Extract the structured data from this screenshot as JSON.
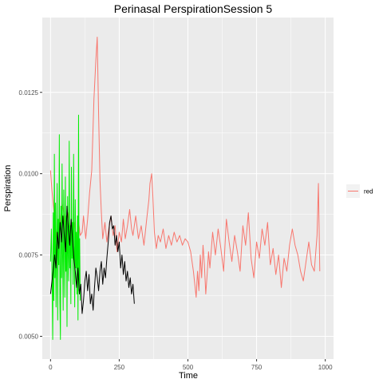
{
  "chart_data": {
    "type": "line",
    "title": "Perinasal PerspirationSession 5",
    "xlabel": "Time",
    "ylabel": "Perspiration",
    "xlim": [
      -30,
      1030
    ],
    "ylim": [
      0.0043,
      0.0148
    ],
    "x_ticks": [
      0,
      250,
      500,
      750,
      1000
    ],
    "x_tick_labels": [
      "0",
      "250",
      "500",
      "750",
      "1000"
    ],
    "y_ticks": [
      0.005,
      0.0075,
      0.01,
      0.0125
    ],
    "y_tick_labels": [
      "0.0050",
      "0.0075",
      "0.0100",
      "0.0125"
    ],
    "grid": true,
    "legend_position": "right",
    "legend_entries": [
      {
        "label": "red",
        "color": "#f8766d"
      }
    ],
    "series": [
      {
        "color": "#f8766d",
        "x": [
          0,
          5,
          12,
          20,
          28,
          35,
          42,
          50,
          58,
          65,
          72,
          80,
          88,
          95,
          100,
          108,
          115,
          120,
          128,
          135,
          142,
          150,
          158,
          165,
          170,
          175,
          180,
          185,
          190,
          198,
          205,
          212,
          220,
          228,
          235,
          242,
          250,
          258,
          265,
          272,
          280,
          288,
          295,
          300,
          310,
          320,
          330,
          340,
          350,
          358,
          362,
          368,
          372,
          378,
          385,
          392,
          400,
          410,
          420,
          430,
          440,
          450,
          460,
          470,
          480,
          490,
          500,
          510,
          515,
          520,
          525,
          530,
          535,
          540,
          545,
          550,
          555,
          560,
          565,
          570,
          575,
          580,
          590,
          600,
          610,
          620,
          630,
          640,
          650,
          660,
          670,
          680,
          690,
          700,
          710,
          720,
          730,
          740,
          750,
          760,
          770,
          780,
          790,
          800,
          810,
          820,
          830,
          840,
          850,
          860,
          870,
          880,
          890,
          900,
          910,
          920,
          930,
          940,
          950,
          960,
          970,
          975,
          980
        ],
        "y": [
          0.0101,
          0.0095,
          0.0089,
          0.0081,
          0.0076,
          0.0085,
          0.0091,
          0.0087,
          0.0078,
          0.0088,
          0.0083,
          0.0079,
          0.0085,
          0.0077,
          0.0087,
          0.0081,
          0.0082,
          0.0087,
          0.008,
          0.0086,
          0.0094,
          0.0101,
          0.0123,
          0.0135,
          0.0142,
          0.0118,
          0.0098,
          0.0088,
          0.008,
          0.0085,
          0.0079,
          0.0083,
          0.0087,
          0.0081,
          0.0084,
          0.0076,
          0.0082,
          0.0079,
          0.0086,
          0.008,
          0.0084,
          0.0089,
          0.0083,
          0.0081,
          0.0087,
          0.008,
          0.0084,
          0.0078,
          0.0086,
          0.0092,
          0.0097,
          0.01,
          0.0094,
          0.0082,
          0.0077,
          0.0081,
          0.0079,
          0.0083,
          0.0077,
          0.0081,
          0.0078,
          0.0082,
          0.0079,
          0.0081,
          0.0078,
          0.008,
          0.0079,
          0.0076,
          0.0073,
          0.007,
          0.0066,
          0.0062,
          0.007,
          0.0064,
          0.0075,
          0.0068,
          0.0078,
          0.0072,
          0.0063,
          0.0069,
          0.0076,
          0.0071,
          0.0082,
          0.0075,
          0.0083,
          0.0077,
          0.007,
          0.0086,
          0.0079,
          0.0073,
          0.0081,
          0.0076,
          0.007,
          0.0084,
          0.0078,
          0.0088,
          0.0074,
          0.0068,
          0.0079,
          0.0074,
          0.0083,
          0.0078,
          0.0085,
          0.0072,
          0.0077,
          0.0069,
          0.0075,
          0.0065,
          0.0074,
          0.007,
          0.0078,
          0.0083,
          0.0078,
          0.0075,
          0.007,
          0.0067,
          0.0073,
          0.0079,
          0.0072,
          0.007,
          0.0081,
          0.0097,
          0.007
        ]
      },
      {
        "color": "#00ee00",
        "x": [
          0,
          3,
          6,
          8,
          10,
          12,
          14,
          16,
          18,
          20,
          22,
          24,
          26,
          28,
          30,
          32,
          34,
          36,
          38,
          40,
          42,
          44,
          46,
          48,
          50,
          52,
          54,
          56,
          58,
          60,
          62,
          64,
          66,
          68,
          70,
          72,
          74,
          76,
          78,
          80,
          82,
          84,
          86,
          88,
          90,
          92,
          94,
          96,
          98,
          100,
          102,
          104,
          106,
          108
        ],
        "y": [
          0.0073,
          0.0083,
          0.0066,
          0.0049,
          0.0088,
          0.0061,
          0.0106,
          0.0068,
          0.0091,
          0.0059,
          0.0078,
          0.0097,
          0.0055,
          0.0086,
          0.0072,
          0.0112,
          0.0061,
          0.0049,
          0.009,
          0.0068,
          0.0103,
          0.0075,
          0.0058,
          0.0095,
          0.0081,
          0.0062,
          0.0099,
          0.007,
          0.0087,
          0.0053,
          0.0093,
          0.0076,
          0.0067,
          0.011,
          0.0071,
          0.0084,
          0.006,
          0.0102,
          0.0074,
          0.0085,
          0.0066,
          0.0106,
          0.0079,
          0.0059,
          0.0092,
          0.0071,
          0.0082,
          0.0063,
          0.0087,
          0.0055,
          0.0118,
          0.0064,
          0.008,
          0.0061
        ]
      },
      {
        "color": "#000000",
        "x": [
          0,
          8,
          15,
          20,
          25,
          30,
          35,
          40,
          45,
          50,
          55,
          60,
          65,
          70,
          75,
          80,
          85,
          90,
          95,
          100,
          105,
          110,
          115,
          120,
          125,
          130,
          135,
          140,
          145,
          150,
          155,
          160,
          165,
          170,
          175,
          180,
          185,
          190,
          195,
          200,
          205,
          210,
          215,
          220,
          225,
          230,
          235,
          240,
          245,
          250,
          255,
          260,
          265,
          270,
          275,
          280,
          285,
          290,
          295,
          300,
          305
        ],
        "y": [
          0.0063,
          0.0069,
          0.0075,
          0.0071,
          0.0082,
          0.0077,
          0.0085,
          0.0079,
          0.0087,
          0.0081,
          0.0076,
          0.009,
          0.0083,
          0.0078,
          0.0086,
          0.008,
          0.0074,
          0.007,
          0.0065,
          0.0071,
          0.0063,
          0.0066,
          0.0057,
          0.0061,
          0.0067,
          0.007,
          0.0064,
          0.0069,
          0.006,
          0.0063,
          0.0058,
          0.0065,
          0.0071,
          0.0068,
          0.0064,
          0.007,
          0.0073,
          0.0066,
          0.0071,
          0.0068,
          0.0074,
          0.0079,
          0.0085,
          0.0087,
          0.0083,
          0.0084,
          0.0078,
          0.0081,
          0.0076,
          0.0079,
          0.0071,
          0.0075,
          0.0069,
          0.0073,
          0.0067,
          0.007,
          0.0065,
          0.0068,
          0.0063,
          0.0066,
          0.006
        ]
      }
    ]
  }
}
